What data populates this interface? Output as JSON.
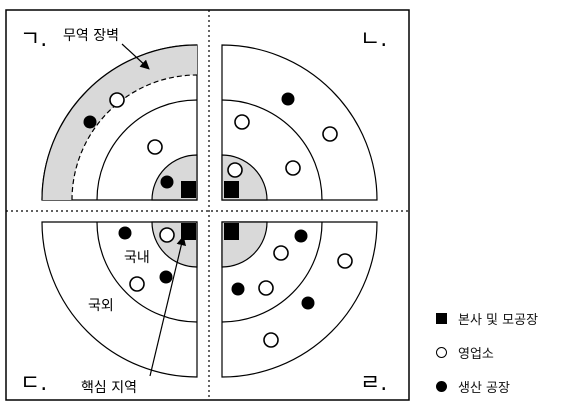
{
  "quadrant_labels": {
    "tl": "ㄱ.",
    "tr": "ㄴ.",
    "bl": "ㄷ.",
    "br": "ㄹ."
  },
  "annotations": {
    "trade_barrier": "무역 장벽",
    "domestic": "국내",
    "foreign": "국외",
    "core_region": "핵심 지역"
  },
  "legend": [
    {
      "symbol": "square",
      "label": "본사 및 모공장"
    },
    {
      "symbol": "open-circle",
      "label": "영업소"
    },
    {
      "symbol": "filled-circle",
      "label": "생산 공장"
    }
  ],
  "colors": {
    "fill": "#d9d9d9",
    "line": "#000000",
    "background": "#ffffff"
  }
}
